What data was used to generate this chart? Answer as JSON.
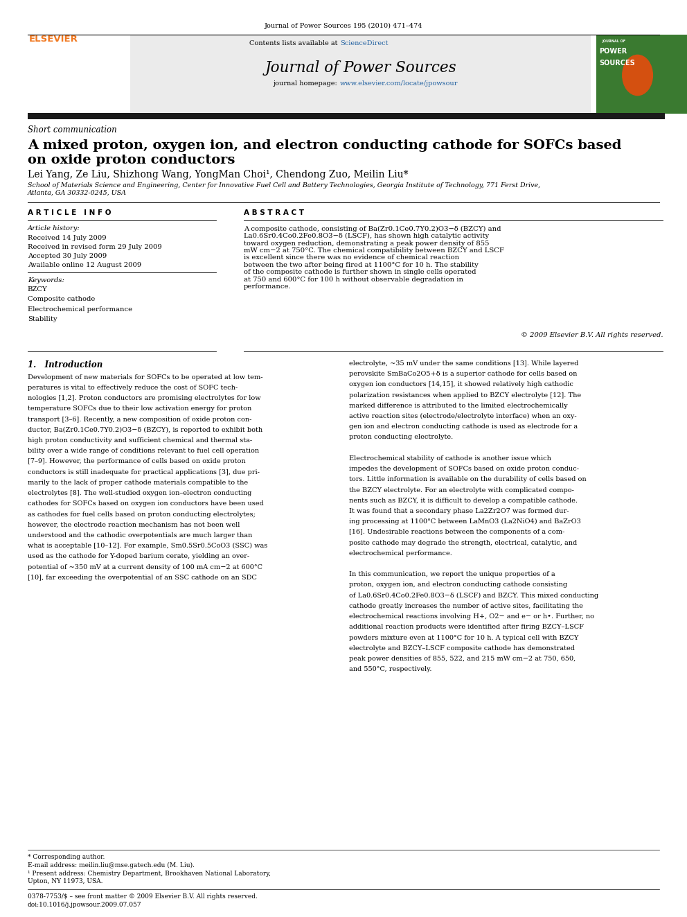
{
  "journal_ref": "Journal of Power Sources 195 (2010) 471–474",
  "contents_text": "Contents lists available at ",
  "sciencedirect": "ScienceDirect",
  "journal_name": "Journal of Power Sources",
  "journal_homepage_text": "journal homepage: ",
  "journal_url": "www.elsevier.com/locate/jpowsour",
  "section_label": "Short communication",
  "paper_title_line1": "A mixed proton, oxygen ion, and electron conducting cathode for SOFCs based",
  "paper_title_line2": "on oxide proton conductors",
  "authors": "Lei Yang, Ze Liu, Shizhong Wang, YongMan Choi¹, Chendong Zuo, Meilin Liu*",
  "affiliation": "School of Materials Science and Engineering, Center for Innovative Fuel Cell and Battery Technologies, Georgia Institute of Technology, 771 Ferst Drive,\nAtlanta, GA 30332-0245, USA",
  "article_info_header": "A R T I C L E   I N F O",
  "abstract_header": "A B S T R A C T",
  "article_history_label": "Article history:",
  "received": "Received 14 July 2009",
  "received_revised": "Received in revised form 29 July 2009",
  "accepted": "Accepted 30 July 2009",
  "available": "Available online 12 August 2009",
  "keywords_label": "Keywords:",
  "keywords": [
    "BZCY",
    "Composite cathode",
    "Electrochemical performance",
    "Stability"
  ],
  "abstract_text": "A composite cathode, consisting of Ba(Zr0.1Ce0.7Y0.2)O3−δ (BZCY) and La0.6Sr0.4Co0.2Fe0.8O3−δ (LSCF), has shown high catalytic activity toward oxygen reduction, demonstrating a peak power density of 855 mW cm−2 at 750°C. The chemical compatibility between BZCY and LSCF is excellent since there was no evidence of chemical reaction between the two after being fired at 1100°C for 10 h. The stability of the composite cathode is further shown in single cells operated at 750 and 600°C for 100 h without observable degradation in performance.",
  "copyright": "© 2009 Elsevier B.V. All rights reserved.",
  "intro_header": "1.   Introduction",
  "intro_text_col1_lines": [
    "Development of new materials for SOFCs to be operated at low tem-",
    "peratures is vital to effectively reduce the cost of SOFC tech-",
    "nologies [1,2]. Proton conductors are promising electrolytes for low",
    "temperature SOFCs due to their low activation energy for proton",
    "transport [3–6]. Recently, a new composition of oxide proton con-",
    "ductor, Ba(Zr0.1Ce0.7Y0.2)O3−δ (BZCY), is reported to exhibit both",
    "high proton conductivity and sufficient chemical and thermal sta-",
    "bility over a wide range of conditions relevant to fuel cell operation",
    "[7–9]. However, the performance of cells based on oxide proton",
    "conductors is still inadequate for practical applications [3], due pri-",
    "marily to the lack of proper cathode materials compatible to the",
    "electrolytes [8]. The well-studied oxygen ion–electron conducting",
    "cathodes for SOFCs based on oxygen ion conductors have been used",
    "as cathodes for fuel cells based on proton conducting electrolytes;",
    "however, the electrode reaction mechanism has not been well",
    "understood and the cathodic overpotentials are much larger than",
    "what is acceptable [10–12]. For example, Sm0.5Sr0.5CoO3 (SSC) was",
    "used as the cathode for Y-doped barium cerate, yielding an over-",
    "potential of ~350 mV at a current density of 100 mA cm−2 at 600°C",
    "[10], far exceeding the overpotential of an SSC cathode on an SDC"
  ],
  "intro_text_col2_lines": [
    "electrolyte, ~35 mV under the same conditions [13]. While layered",
    "perovskite SmBaCo2O5+δ is a superior cathode for cells based on",
    "oxygen ion conductors [14,15], it showed relatively high cathodic",
    "polarization resistances when applied to BZCY electrolyte [12]. The",
    "marked difference is attributed to the limited electrochemically",
    "active reaction sites (electrode/electrolyte interface) when an oxy-",
    "gen ion and electron conducting cathode is used as electrode for a",
    "proton conducting electrolyte.",
    "",
    "Electrochemical stability of cathode is another issue which",
    "impedes the development of SOFCs based on oxide proton conduc-",
    "tors. Little information is available on the durability of cells based on",
    "the BZCY electrolyte. For an electrolyte with complicated compo-",
    "nents such as BZCY, it is difficult to develop a compatible cathode.",
    "It was found that a secondary phase La2Zr2O7 was formed dur-",
    "ing processing at 1100°C between LaMnO3 (La2NiO4) and BaZrO3",
    "[16]. Undesirable reactions between the components of a com-",
    "posite cathode may degrade the strength, electrical, catalytic, and",
    "electrochemical performance.",
    "",
    "In this communication, we report the unique properties of a",
    "proton, oxygen ion, and electron conducting cathode consisting",
    "of La0.6Sr0.4Co0.2Fe0.8O3−δ (LSCF) and BZCY. This mixed conducting",
    "cathode greatly increases the number of active sites, facilitating the",
    "electrochemical reactions involving H+, O2− and e− or h•. Further, no",
    "additional reaction products were identified after firing BZCY–LSCF",
    "powders mixture even at 1100°C for 10 h. A typical cell with BZCY",
    "electrolyte and BZCY–LSCF composite cathode has demonstrated",
    "peak power densities of 855, 522, and 215 mW cm−2 at 750, 650,",
    "and 550°C, respectively."
  ],
  "footnote_star": "* Corresponding author.",
  "footnote_email": "E-mail address: meilin.liu@mse.gatech.edu (M. Liu).",
  "footnote_1a": "¹ Present address: Chemistry Department, Brookhaven National Laboratory,",
  "footnote_1b": "Upton, NY 11973, USA.",
  "bottom_line1": "0378-7753/$ – see front matter © 2009 Elsevier B.V. All rights reserved.",
  "bottom_line2": "doi:10.1016/j.jpowsour.2009.07.057",
  "bg_color": "#ffffff",
  "black_bar": "#1a1a1a",
  "link_color": "#2060a0",
  "elsevier_orange": "#f07820",
  "cover_green": "#3a7a30",
  "cover_orange": "#d45010"
}
